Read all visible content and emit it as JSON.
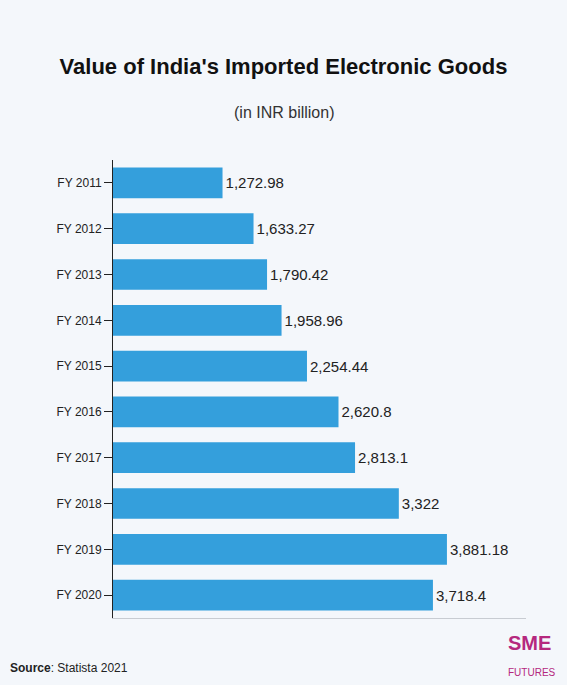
{
  "chart_data": {
    "type": "bar",
    "orientation": "horizontal",
    "title": "Value of India's Imported Electronic Goods",
    "subtitle": "(in INR billion)",
    "categories": [
      "FY 2011",
      "FY 2012",
      "FY 2013",
      "FY 2014",
      "FY 2015",
      "FY 2016",
      "FY 2017",
      "FY 2018",
      "FY 2019",
      "FY 2020"
    ],
    "values": [
      1272.98,
      1633.27,
      1790.42,
      1958.96,
      2254.44,
      2620.8,
      2813.1,
      3322,
      3881.18,
      3718.4
    ],
    "value_labels": [
      "1,272.98",
      "1,633.27",
      "1,790.42",
      "1,958.96",
      "2,254.44",
      "2,620.8",
      "2,813.1",
      "3,322",
      "3,881.18",
      "3,718.4"
    ],
    "data_labels": true,
    "color": "#349fdc",
    "xlim": [
      0,
      4800
    ],
    "grid": false,
    "tick_labels": "y",
    "annotations": [
      "Source: Statista 2021",
      "SME FUTURES"
    ]
  }
}
